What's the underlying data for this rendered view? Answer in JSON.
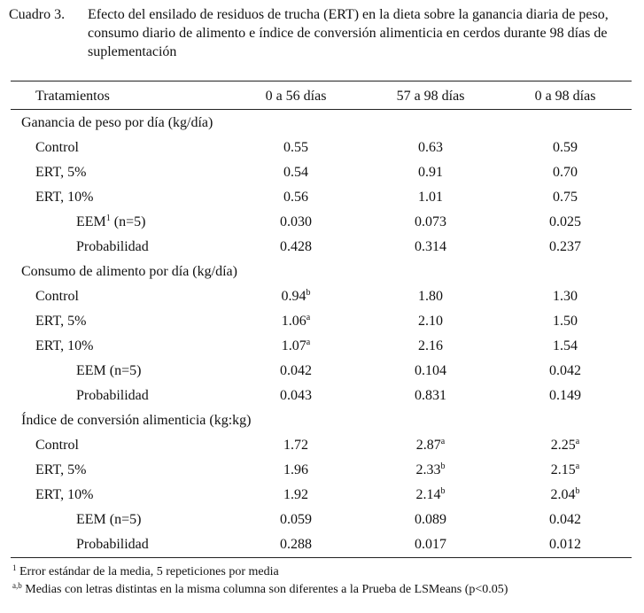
{
  "caption": {
    "lead": "Cuadro 3.",
    "text": "Efecto del ensilado de residuos de trucha (ERT) en la dieta sobre la ganancia diaria de peso, consumo diario de alimento e índice de conversión alimenticia en cerdos durante 98 días de suplementación"
  },
  "headers": [
    "Tratamientos",
    "0 a 56 días",
    "57 a 98 días",
    "0 a 98 días"
  ],
  "sections": [
    {
      "title": "Ganancia de peso por día (kg/día)",
      "rows": [
        {
          "label": "Control",
          "label_sup": "",
          "values": [
            {
              "v": "0.55",
              "s": ""
            },
            {
              "v": "0.63",
              "s": ""
            },
            {
              "v": "0.59",
              "s": ""
            }
          ]
        },
        {
          "label": "ERT, 5%",
          "label_sup": "",
          "values": [
            {
              "v": "0.54",
              "s": ""
            },
            {
              "v": "0.91",
              "s": ""
            },
            {
              "v": "0.70",
              "s": ""
            }
          ]
        },
        {
          "label": "ERT, 10%",
          "label_sup": "",
          "values": [
            {
              "v": "0.56",
              "s": ""
            },
            {
              "v": "1.01",
              "s": ""
            },
            {
              "v": "0.75",
              "s": ""
            }
          ]
        },
        {
          "label": "EEM",
          "label_sup": "1",
          "label_rest": " (n=5)",
          "stat": true,
          "values": [
            {
              "v": "0.030",
              "s": ""
            },
            {
              "v": "0.073",
              "s": ""
            },
            {
              "v": "0.025",
              "s": ""
            }
          ]
        },
        {
          "label": "Probabilidad",
          "label_sup": "",
          "stat": true,
          "values": [
            {
              "v": "0.428",
              "s": ""
            },
            {
              "v": "0.314",
              "s": ""
            },
            {
              "v": "0.237",
              "s": ""
            }
          ]
        }
      ]
    },
    {
      "title": "Consumo de alimento por día (kg/día)",
      "rows": [
        {
          "label": "Control",
          "label_sup": "",
          "values": [
            {
              "v": "0.94",
              "s": "b"
            },
            {
              "v": "1.80",
              "s": ""
            },
            {
              "v": "1.30",
              "s": ""
            }
          ]
        },
        {
          "label": "ERT, 5%",
          "label_sup": "",
          "values": [
            {
              "v": "1.06",
              "s": "a"
            },
            {
              "v": "2.10",
              "s": ""
            },
            {
              "v": "1.50",
              "s": ""
            }
          ]
        },
        {
          "label": "ERT, 10%",
          "label_sup": "",
          "values": [
            {
              "v": "1.07",
              "s": "a"
            },
            {
              "v": "2.16",
              "s": ""
            },
            {
              "v": "1.54",
              "s": ""
            }
          ]
        },
        {
          "label": "EEM (n=5)",
          "label_sup": "",
          "stat": true,
          "values": [
            {
              "v": "0.042",
              "s": ""
            },
            {
              "v": "0.104",
              "s": ""
            },
            {
              "v": "0.042",
              "s": ""
            }
          ]
        },
        {
          "label": "Probabilidad",
          "label_sup": "",
          "stat": true,
          "values": [
            {
              "v": "0.043",
              "s": ""
            },
            {
              "v": "0.831",
              "s": ""
            },
            {
              "v": "0.149",
              "s": ""
            }
          ]
        }
      ]
    },
    {
      "title": "Índice de conversión alimenticia (kg:kg)",
      "rows": [
        {
          "label": "Control",
          "label_sup": "",
          "values": [
            {
              "v": "1.72",
              "s": ""
            },
            {
              "v": "2.87",
              "s": "a"
            },
            {
              "v": "2.25",
              "s": "a"
            }
          ]
        },
        {
          "label": "ERT, 5%",
          "label_sup": "",
          "values": [
            {
              "v": "1.96",
              "s": ""
            },
            {
              "v": "2.33",
              "s": "b"
            },
            {
              "v": "2.15",
              "s": "a"
            }
          ]
        },
        {
          "label": "ERT, 10%",
          "label_sup": "",
          "values": [
            {
              "v": "1.92",
              "s": ""
            },
            {
              "v": "2.14",
              "s": "b"
            },
            {
              "v": "2.04",
              "s": "b"
            }
          ]
        },
        {
          "label": "EEM (n=5)",
          "label_sup": "",
          "stat": true,
          "values": [
            {
              "v": "0.059",
              "s": ""
            },
            {
              "v": "0.089",
              "s": ""
            },
            {
              "v": "0.042",
              "s": ""
            }
          ]
        },
        {
          "label": "Probabilidad",
          "label_sup": "",
          "stat": true,
          "values": [
            {
              "v": "0.288",
              "s": ""
            },
            {
              "v": "0.017",
              "s": ""
            },
            {
              "v": "0.012",
              "s": ""
            }
          ]
        }
      ]
    }
  ],
  "footnotes": [
    {
      "sup": "1",
      "text": " Error estándar de la media, 5 repeticiones por media"
    },
    {
      "sup": "a,b",
      "text": " Medias con letras distintas en la misma columna son diferentes a la Prueba de LSMeans (p<0.05)"
    }
  ]
}
